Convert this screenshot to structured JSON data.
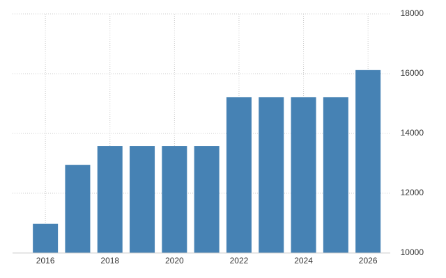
{
  "chart_data": {
    "type": "bar",
    "categories": [
      "2016",
      null,
      "2018",
      null,
      "2020",
      null,
      "2022",
      null,
      "2024",
      null,
      "2026"
    ],
    "values": [
      10980,
      12950,
      13580,
      13580,
      13580,
      13580,
      15210,
      15210,
      15210,
      15210,
      16120
    ],
    "color": "#4682b4",
    "ylim": [
      10000,
      18000
    ],
    "yticks": [
      10000,
      12000,
      14000,
      16000,
      18000
    ],
    "grid": true
  }
}
